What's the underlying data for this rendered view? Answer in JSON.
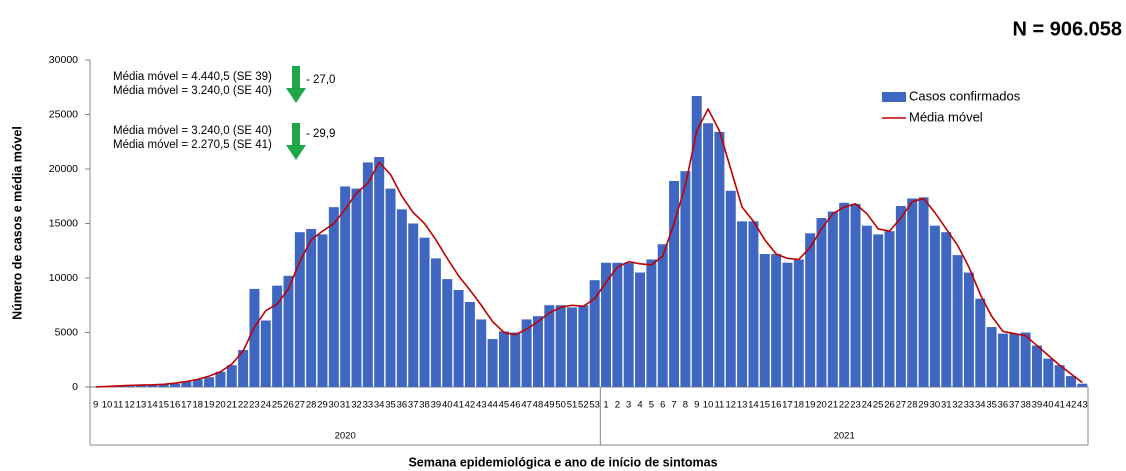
{
  "chart_data": {
    "type": "bar",
    "title": "N = 906.058",
    "y_label": "Número de casos e média móvel",
    "x_label": "Semana epidemiológica e ano de início de sintomas",
    "year_labels": [
      "2020",
      "2021"
    ],
    "categories": [
      "9",
      "10",
      "11",
      "12",
      "13",
      "14",
      "15",
      "16",
      "17",
      "18",
      "19",
      "20",
      "21",
      "22",
      "23",
      "24",
      "25",
      "26",
      "27",
      "28",
      "29",
      "30",
      "31",
      "32",
      "33",
      "34",
      "35",
      "36",
      "37",
      "38",
      "39",
      "40",
      "41",
      "42",
      "43",
      "44",
      "45",
      "46",
      "47",
      "48",
      "49",
      "50",
      "51",
      "52",
      "53",
      "1",
      "2",
      "3",
      "4",
      "5",
      "6",
      "7",
      "8",
      "9",
      "10",
      "11",
      "12",
      "13",
      "14",
      "15",
      "16",
      "17",
      "18",
      "19",
      "20",
      "21",
      "22",
      "23",
      "24",
      "25",
      "26",
      "27",
      "28",
      "29",
      "30",
      "31",
      "32",
      "33",
      "34",
      "35",
      "36",
      "37",
      "38",
      "39",
      "40",
      "41",
      "42",
      "43"
    ],
    "series": [
      {
        "name": "Casos confirmados",
        "type": "bar",
        "color": "#3f67c2",
        "values": [
          0,
          50,
          100,
          150,
          200,
          200,
          250,
          300,
          500,
          700,
          900,
          1400,
          2000,
          3400,
          9000,
          6100,
          9300,
          10200,
          14200,
          14500,
          14000,
          16500,
          18400,
          18200,
          20600,
          21100,
          18200,
          16300,
          15000,
          13700,
          11800,
          9900,
          8900,
          7800,
          6200,
          4400,
          5100,
          5000,
          6200,
          6500,
          7500,
          7500,
          7300,
          7500,
          9800,
          11400,
          11400,
          11400,
          10500,
          11700,
          13100,
          18900,
          19800,
          26700,
          24200,
          23400,
          18000,
          15200,
          15200,
          12200,
          12200,
          11400,
          11700,
          14100,
          15500,
          16100,
          16900,
          16800,
          14800,
          14000,
          14300,
          16600,
          17300,
          17400,
          14800,
          14200,
          12100,
          10500,
          8100,
          5500,
          4900,
          4900,
          5000,
          3800,
          2600,
          2000,
          1000,
          300
        ]
      },
      {
        "name": "Média móvel",
        "type": "line",
        "color": "#c00000",
        "values": [
          0,
          50,
          100,
          150,
          180,
          200,
          250,
          350,
          500,
          700,
          1000,
          1400,
          2100,
          3300,
          5500,
          7000,
          7600,
          9000,
          11500,
          13500,
          14300,
          15000,
          16300,
          17800,
          18700,
          20600,
          19500,
          17500,
          16000,
          15000,
          13500,
          11800,
          10200,
          8900,
          7500,
          6000,
          5000,
          4800,
          5300,
          6000,
          6800,
          7300,
          7500,
          7400,
          8100,
          9600,
          11000,
          11500,
          11300,
          11200,
          12000,
          15000,
          18500,
          23500,
          25500,
          23500,
          20000,
          16500,
          15200,
          13500,
          12200,
          11800,
          11700,
          12800,
          14500,
          15900,
          16500,
          16800,
          15900,
          14500,
          14300,
          15500,
          17000,
          17300,
          16000,
          14500,
          13000,
          11000,
          8500,
          6500,
          5100,
          4900,
          4700,
          3800,
          2900,
          2000,
          1200,
          400
        ]
      }
    ],
    "ylim": [
      0,
      30000
    ],
    "yticks": [
      0,
      5000,
      10000,
      15000,
      20000,
      25000,
      30000
    ],
    "legend": "upper right",
    "annotations": [
      {
        "lines": [
          "Média móvel =  4.440,5 (SE 39)",
          "Média móvel =  3.240,0 (SE 40)"
        ],
        "change": "- 27,0"
      },
      {
        "lines": [
          "Média móvel =  3.240,0 (SE 40)",
          "Média móvel =  2.270,5 (SE 41)"
        ],
        "change": "- 29,9"
      }
    ]
  }
}
